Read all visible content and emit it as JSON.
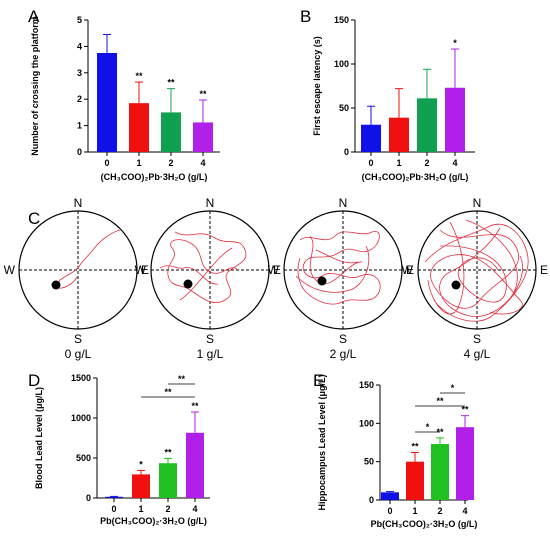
{
  "colors": {
    "0": "#1010e8",
    "1": "#f01010",
    "2": "#10a050",
    "4": "#b020e8",
    "d2": "#20c020",
    "track": "#e03040"
  },
  "chart_data": [
    {
      "panel": "A",
      "type": "bar",
      "categories": [
        "0",
        "1",
        "2",
        "4"
      ],
      "values": [
        3.75,
        1.85,
        1.5,
        1.12
      ],
      "errors": [
        0.7,
        0.8,
        0.9,
        0.85
      ],
      "significance": [
        "",
        "**",
        "**",
        "**"
      ],
      "xlabel": "(CH₃COO)₂Pb·3H₂O (g/L)",
      "ylabel": "Number of crossing the platform",
      "ylim": [
        0,
        5
      ],
      "yticks": [
        "0",
        "1",
        "2",
        "3",
        "4",
        "5"
      ]
    },
    {
      "panel": "B",
      "type": "bar",
      "categories": [
        "0",
        "1",
        "2",
        "4"
      ],
      "values": [
        31,
        39,
        61,
        73
      ],
      "errors": [
        21,
        33,
        33,
        44
      ],
      "significance": [
        "",
        "",
        "",
        "*"
      ],
      "xlabel": "(CH₃COO)₂Pb·3H₂O (g/L)",
      "ylabel": "First escape latency (s)",
      "ylim": [
        0,
        150
      ],
      "yticks": [
        "0",
        "50",
        "100",
        "150"
      ]
    },
    {
      "panel": "D",
      "type": "bar",
      "categories": [
        "0",
        "1",
        "2",
        "4"
      ],
      "values": [
        15,
        295,
        435,
        815
      ],
      "errors": [
        5,
        50,
        60,
        260
      ],
      "significance": [
        "",
        "*",
        "**",
        "**"
      ],
      "brackets": [
        {
          "from": "1",
          "to": "4",
          "label": "**"
        },
        {
          "from": "2",
          "to": "4",
          "label": "**"
        }
      ],
      "xlabel": "Pb(CH₃COO)₂·3H₂O (g/L)",
      "ylabel": "Blood Lead Level (μg/L)",
      "ylim": [
        0,
        1500
      ],
      "yticks": [
        "0",
        "500",
        "1000",
        "1500"
      ]
    },
    {
      "panel": "E",
      "type": "bar",
      "categories": [
        "0",
        "1",
        "2",
        "4"
      ],
      "values": [
        10,
        50,
        73,
        95
      ],
      "errors": [
        1,
        12,
        8,
        15
      ],
      "significance": [
        "",
        "**",
        "**",
        "**"
      ],
      "brackets": [
        {
          "from": "1",
          "to": "2",
          "label": "*"
        },
        {
          "from": "1",
          "to": "4",
          "label": "**"
        },
        {
          "from": "2",
          "to": "4",
          "label": "*"
        }
      ],
      "xlabel": "Pb(CH₃COO)₂·3H₂O (g/L)",
      "ylabel": "Hippocampus Lead Level (μg/L)",
      "ylim": [
        0,
        150
      ],
      "yticks": [
        "0",
        "50",
        "100",
        "150"
      ]
    }
  ],
  "panel_c": {
    "letter": "C",
    "mazes": [
      {
        "caption": "0 g/L",
        "left_label": "W",
        "right_label": "E"
      },
      {
        "caption": "1 g/L",
        "left_label": "W",
        "right_label": "E"
      },
      {
        "caption": "2 g/L",
        "left_label": "W",
        "right_label": "E"
      },
      {
        "caption": "4 g/L",
        "left_label": "W",
        "right_label": "E"
      }
    ],
    "north_label": "N",
    "south_label": "S"
  }
}
